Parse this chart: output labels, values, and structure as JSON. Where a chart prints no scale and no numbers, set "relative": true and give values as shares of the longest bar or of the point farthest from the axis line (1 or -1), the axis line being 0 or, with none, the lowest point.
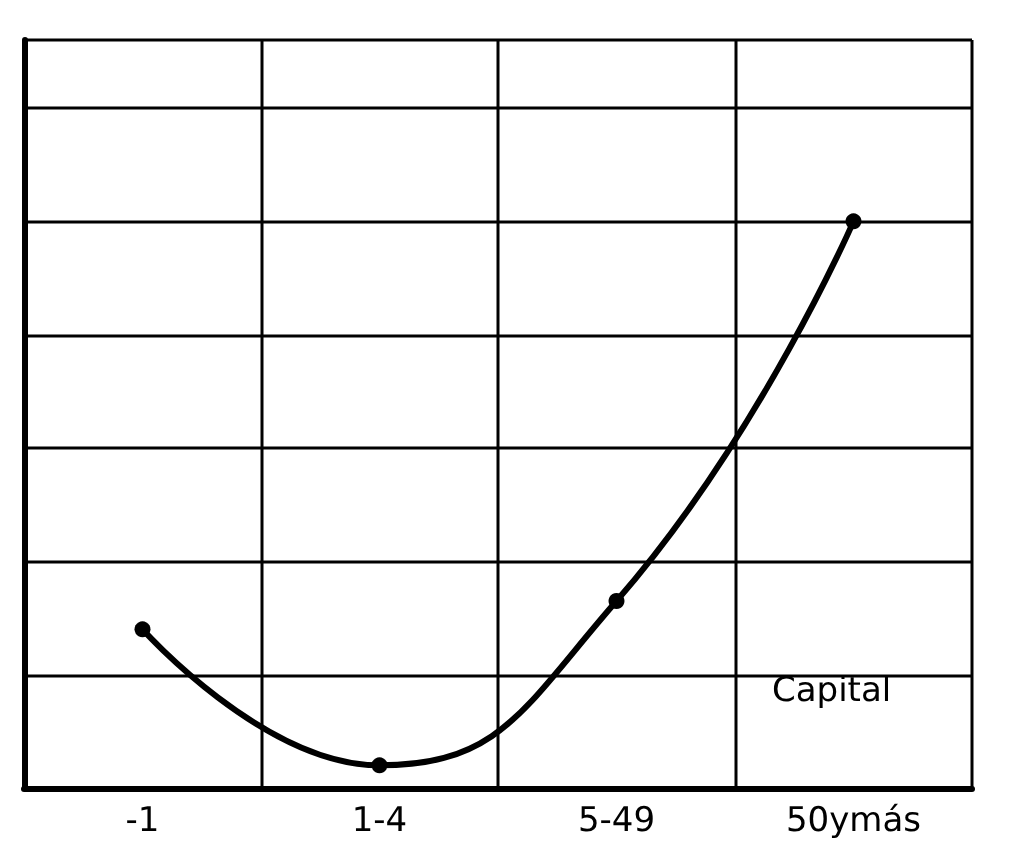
{
  "chart_data": {
    "type": "line",
    "xlabel": "Capital",
    "categories": [
      "-1",
      "1-4",
      "5-49",
      "50ymás"
    ],
    "values": [
      0.28,
      0.04,
      0.33,
      1
    ],
    "color": "#000000",
    "relative": true,
    "grid": true,
    "marker": "circle",
    "line_style": "solid"
  }
}
